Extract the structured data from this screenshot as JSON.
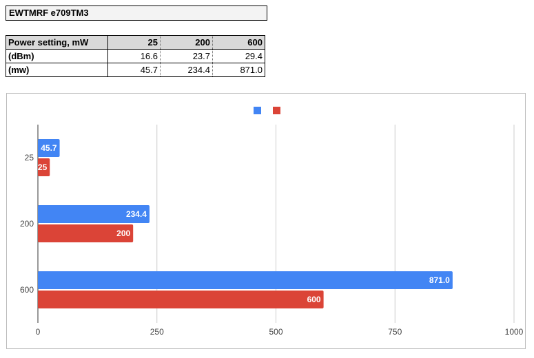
{
  "header": {
    "title": "EWTMRF e709TM3"
  },
  "table": {
    "header_label": "Power setting, mW",
    "columns": [
      "25",
      "200",
      "600"
    ],
    "rows": [
      {
        "label": "(dBm)",
        "values": [
          "16.6",
          "23.7",
          "29.4"
        ]
      },
      {
        "label": "(mw)",
        "values": [
          "45.7",
          "234.4",
          "871.0"
        ]
      }
    ]
  },
  "chart_data": {
    "type": "bar",
    "orientation": "horizontal",
    "categories": [
      "25",
      "200",
      "600"
    ],
    "series": [
      {
        "values": [
          45.7,
          234.4,
          871.0
        ],
        "labels": [
          "45.7",
          "234.4",
          "871.0"
        ],
        "color": "#4285f4"
      },
      {
        "values": [
          25,
          200,
          600
        ],
        "labels": [
          "25",
          "200",
          "600"
        ],
        "color": "#db4437"
      }
    ],
    "xlim": [
      0,
      1000
    ],
    "xticks": [
      "0",
      "250",
      "500",
      "750",
      "1000"
    ],
    "xtick_values": [
      0,
      250,
      500,
      750,
      1000
    ],
    "grid": true,
    "legend": "top-center",
    "title": "",
    "xlabel": "",
    "ylabel": ""
  }
}
